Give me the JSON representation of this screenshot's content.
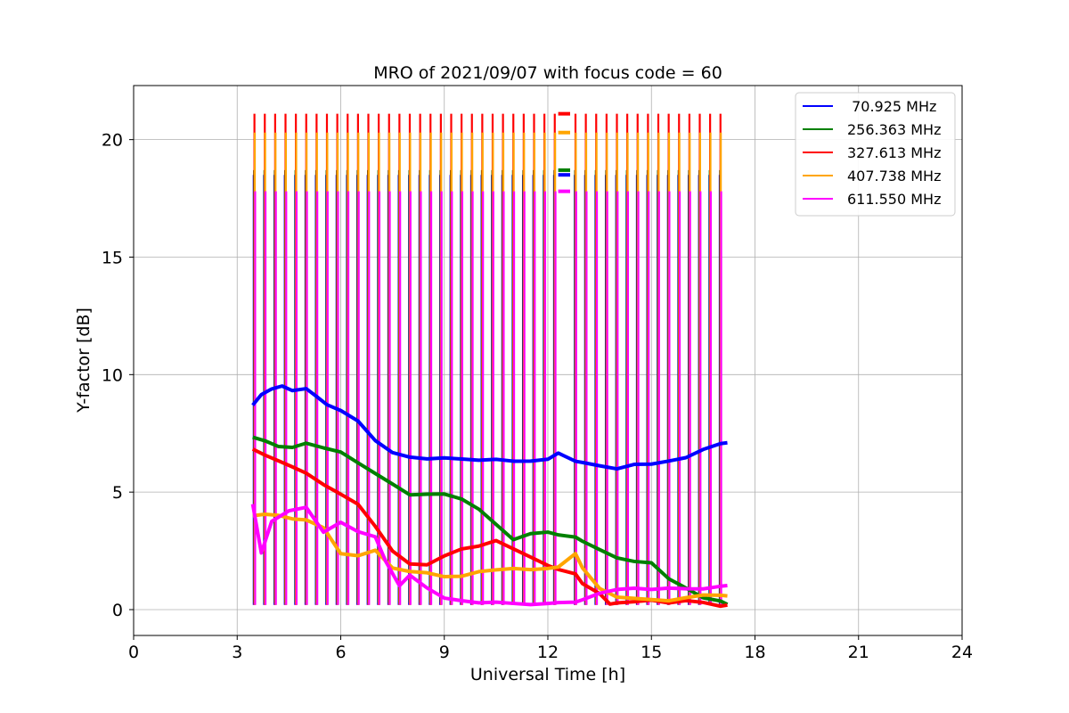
{
  "chart_data": {
    "type": "line",
    "title": "MRO of 2021/09/07 with focus code = 60",
    "xlabel": "Universal Time [h]",
    "ylabel": "Y-factor [dB]",
    "xlim": [
      0,
      24
    ],
    "ylim": [
      -1.1,
      22.3
    ],
    "xticks": [
      0,
      3,
      6,
      9,
      12,
      15,
      18,
      21,
      24
    ],
    "yticks": [
      0,
      5,
      10,
      15,
      20
    ],
    "grid": true,
    "legend_position": "top-right",
    "calibration_spikes": {
      "start": 3.5,
      "end": 17.1,
      "interval": 0.3,
      "gap": [
        12.3,
        12.8
      ]
    },
    "series": [
      {
        "name": " 70.925 MHz",
        "color": "#0000ff",
        "spike_top": 18.5,
        "spike_bottom": 0.2,
        "x": [
          3.45,
          3.7,
          4.0,
          4.3,
          4.6,
          5.0,
          5.3,
          5.6,
          6.0,
          6.5,
          7.0,
          7.5,
          8.0,
          8.5,
          9.0,
          9.5,
          10.0,
          10.5,
          11.0,
          11.5,
          12.0,
          12.3,
          12.8,
          13.0,
          13.5,
          14.0,
          14.5,
          15.0,
          15.5,
          16.0,
          16.5,
          17.0,
          17.2
        ],
        "y": [
          8.7,
          9.1,
          9.3,
          9.4,
          9.2,
          9.3,
          9.0,
          8.7,
          8.5,
          8.1,
          7.3,
          6.8,
          6.6,
          6.5,
          6.5,
          6.4,
          6.3,
          6.3,
          6.2,
          6.2,
          6.3,
          6.6,
          6.3,
          6.3,
          6.2,
          6.1,
          6.3,
          6.3,
          6.4,
          6.5,
          6.8,
          7.0,
          7.0
        ]
      },
      {
        "name": "256.363 MHz",
        "color": "#008000",
        "spike_top": 18.7,
        "spike_bottom": 0.3,
        "x": [
          3.45,
          3.8,
          4.2,
          4.6,
          5.0,
          5.5,
          6.0,
          6.5,
          7.0,
          7.5,
          8.0,
          8.5,
          9.0,
          9.5,
          10.0,
          10.5,
          11.0,
          11.5,
          12.0,
          12.3,
          12.8,
          13.0,
          13.5,
          14.0,
          14.5,
          15.0,
          15.5,
          16.0,
          16.5,
          17.0,
          17.2
        ],
        "y": [
          7.3,
          7.2,
          7.0,
          7.0,
          7.2,
          7.0,
          6.8,
          6.3,
          5.8,
          5.3,
          4.8,
          4.8,
          4.8,
          4.6,
          4.2,
          3.6,
          3.0,
          3.3,
          3.4,
          3.3,
          3.2,
          3.0,
          2.6,
          2.2,
          2.0,
          1.9,
          1.2,
          0.8,
          0.4,
          0.3,
          0.2
        ]
      },
      {
        "name": "327.613 MHz",
        "color": "#ff0000",
        "spike_top": 21.1,
        "spike_bottom": 0.2,
        "x": [
          3.45,
          3.8,
          4.2,
          4.6,
          5.0,
          5.5,
          6.0,
          6.5,
          7.0,
          7.5,
          8.0,
          8.5,
          9.0,
          9.5,
          10.0,
          10.5,
          11.0,
          11.5,
          12.0,
          12.3,
          12.8,
          13.0,
          13.5,
          13.8,
          14.0,
          14.5,
          15.0,
          15.5,
          16.0,
          16.5,
          17.0,
          17.2
        ],
        "y": [
          6.9,
          6.6,
          6.3,
          6.0,
          5.7,
          5.2,
          4.8,
          4.4,
          3.5,
          2.5,
          2.0,
          2.0,
          2.4,
          2.7,
          2.8,
          3.0,
          2.6,
          2.2,
          1.8,
          1.6,
          1.4,
          1.0,
          0.6,
          0.2,
          0.3,
          0.4,
          0.5,
          0.4,
          0.5,
          0.4,
          0.2,
          0.2
        ]
      },
      {
        "name": "407.738 MHz",
        "color": "#ffa500",
        "spike_top": 20.3,
        "spike_bottom": 0.2,
        "x": [
          3.45,
          3.8,
          4.2,
          4.6,
          5.0,
          5.5,
          6.0,
          6.5,
          7.0,
          7.5,
          8.0,
          8.5,
          9.0,
          9.5,
          10.0,
          10.5,
          11.0,
          11.5,
          12.0,
          12.3,
          12.8,
          13.0,
          13.5,
          14.0,
          14.5,
          15.0,
          15.5,
          16.0,
          16.5,
          17.0,
          17.2
        ],
        "y": [
          3.9,
          4.0,
          4.0,
          3.9,
          3.9,
          3.6,
          2.5,
          2.4,
          2.6,
          1.8,
          1.6,
          1.5,
          1.3,
          1.3,
          1.5,
          1.6,
          1.7,
          1.7,
          1.8,
          1.9,
          2.5,
          1.9,
          1.0,
          0.6,
          0.5,
          0.4,
          0.3,
          0.4,
          0.5,
          0.5,
          0.5
        ]
      },
      {
        "name": "611.550 MHz",
        "color": "#ff00ff",
        "spike_top": 17.8,
        "spike_bottom": 0.2,
        "x": [
          3.45,
          3.7,
          4.0,
          4.5,
          5.0,
          5.5,
          6.0,
          6.5,
          7.0,
          7.3,
          7.7,
          8.0,
          8.5,
          9.0,
          9.5,
          10.0,
          10.5,
          11.0,
          11.5,
          12.0,
          12.3,
          12.8,
          13.0,
          13.5,
          14.0,
          14.5,
          15.0,
          15.5,
          16.0,
          16.5,
          17.0,
          17.2
        ],
        "y": [
          4.6,
          2.5,
          3.8,
          4.2,
          4.3,
          3.2,
          3.6,
          3.2,
          3.0,
          2.0,
          1.0,
          1.5,
          1.0,
          0.6,
          0.5,
          0.4,
          0.4,
          0.3,
          0.2,
          0.2,
          0.2,
          0.2,
          0.3,
          0.6,
          0.8,
          0.9,
          0.9,
          1.0,
          1.0,
          1.0,
          1.1,
          1.1
        ]
      }
    ]
  }
}
